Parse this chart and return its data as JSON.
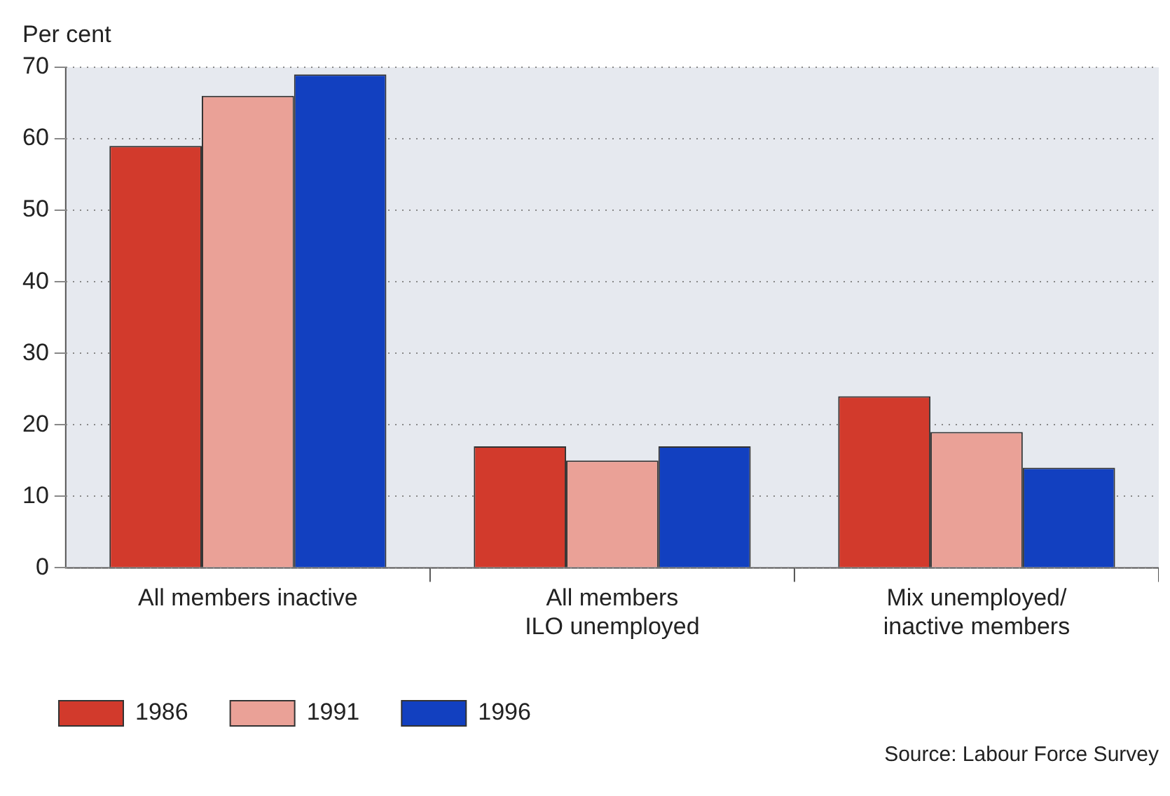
{
  "chart_data": {
    "type": "bar",
    "ylabel": "Per cent",
    "categories": [
      "All members inactive",
      "All members\nILO unemployed",
      "Mix unemployed/\ninactive members"
    ],
    "series": [
      {
        "name": "1986",
        "color": "#d23a2c",
        "values": [
          59,
          17,
          24
        ]
      },
      {
        "name": "1991",
        "color": "#eaa197",
        "values": [
          66,
          15,
          19
        ]
      },
      {
        "name": "1996",
        "color": "#1240c0",
        "values": [
          69,
          17,
          14
        ]
      }
    ],
    "ylim": [
      0,
      70
    ],
    "yticks": [
      0,
      10,
      20,
      30,
      40,
      50,
      60,
      70
    ],
    "grid": "y",
    "legend": "bottom left",
    "annotations": [
      "Source:  Labour Force Survey"
    ]
  }
}
